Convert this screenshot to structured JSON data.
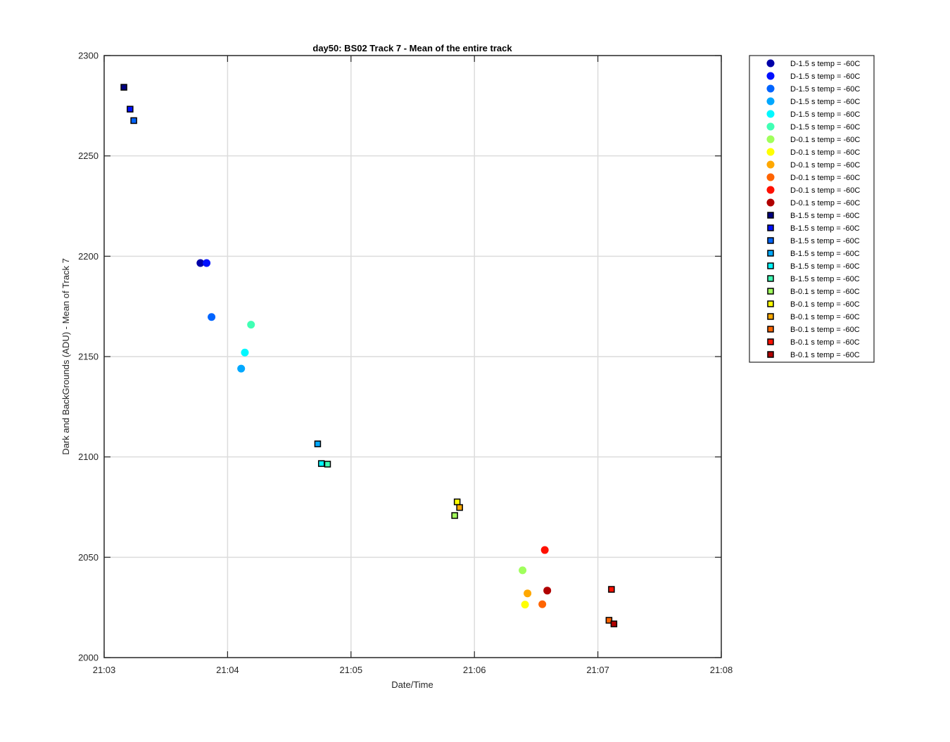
{
  "chart_data": {
    "type": "scatter",
    "title": "day50: BS02  Track 7 - Mean of the entire track",
    "xlabel": "Date/Time",
    "ylabel": "Dark and BackGrounds (ADU) - Mean of Track 7",
    "x_ticks": [
      "21:03",
      "21:04",
      "21:05",
      "21:06",
      "21:07",
      "21:08"
    ],
    "x_tick_minutes": [
      0,
      1,
      2,
      3,
      4,
      5
    ],
    "xlim_minutes": [
      0,
      5
    ],
    "y_ticks": [
      "2000",
      "2050",
      "2100",
      "2150",
      "2200",
      "2250",
      "2300"
    ],
    "ylim": [
      2000,
      2300
    ],
    "grid": true,
    "legend_position": "outside-top-right",
    "series": [
      {
        "name": "D-1.5 s temp = -60C",
        "marker": "circle",
        "color": "#0000a8",
        "points": [
          [
            0.78,
            2196.6
          ]
        ]
      },
      {
        "name": "D-1.5 s temp = -60C",
        "marker": "circle",
        "color": "#0010ff",
        "points": [
          [
            0.83,
            2196.6
          ]
        ]
      },
      {
        "name": "D-1.5 s temp = -60C",
        "marker": "circle",
        "color": "#0064ff",
        "points": [
          [
            0.87,
            2169.7
          ]
        ]
      },
      {
        "name": "D-1.5 s temp = -60C",
        "marker": "circle",
        "color": "#00a8ff",
        "points": [
          [
            1.11,
            2144.0
          ]
        ]
      },
      {
        "name": "D-1.5 s temp = -60C",
        "marker": "circle",
        "color": "#00f8ff",
        "points": [
          [
            1.14,
            2152.0
          ]
        ]
      },
      {
        "name": "D-1.5 s temp = -60C",
        "marker": "circle",
        "color": "#40ffb4",
        "points": [
          [
            1.19,
            2165.9
          ]
        ]
      },
      {
        "name": "D-0.1 s temp = -60C",
        "marker": "circle",
        "color": "#a0ff5c",
        "points": [
          [
            3.39,
            2043.5
          ]
        ]
      },
      {
        "name": "D-0.1 s temp = -60C",
        "marker": "circle",
        "color": "#ffff00",
        "points": [
          [
            3.41,
            2026.4
          ]
        ]
      },
      {
        "name": "D-0.1 s temp = -60C",
        "marker": "circle",
        "color": "#ffa800",
        "points": [
          [
            3.43,
            2032.0
          ]
        ]
      },
      {
        "name": "D-0.1 s temp = -60C",
        "marker": "circle",
        "color": "#ff6400",
        "points": [
          [
            3.55,
            2026.6
          ]
        ]
      },
      {
        "name": "D-0.1 s temp = -60C",
        "marker": "circle",
        "color": "#ff1000",
        "points": [
          [
            3.57,
            2053.6
          ]
        ]
      },
      {
        "name": "D-0.1 s temp = -60C",
        "marker": "circle",
        "color": "#b00000",
        "points": [
          [
            3.59,
            2033.4
          ]
        ]
      },
      {
        "name": "B-1.5 s temp = -60C",
        "marker": "square",
        "color": "#000080",
        "points": [
          [
            0.16,
            2284.2
          ]
        ]
      },
      {
        "name": "B-1.5 s temp = -60C",
        "marker": "square",
        "color": "#0010ff",
        "points": [
          [
            0.21,
            2273.3
          ]
        ]
      },
      {
        "name": "B-1.5 s temp = -60C",
        "marker": "square",
        "color": "#0064ff",
        "points": [
          [
            0.24,
            2267.6
          ]
        ]
      },
      {
        "name": "B-1.5 s temp = -60C",
        "marker": "square",
        "color": "#00a8ff",
        "points": [
          [
            1.73,
            2106.5
          ]
        ]
      },
      {
        "name": "B-1.5 s temp = -60C",
        "marker": "square",
        "color": "#00f8ff",
        "points": [
          [
            1.76,
            2096.7
          ]
        ]
      },
      {
        "name": "B-1.5 s temp = -60C",
        "marker": "square",
        "color": "#40ffb4",
        "points": [
          [
            1.81,
            2096.4
          ]
        ]
      },
      {
        "name": "B-0.1 s temp = -60C",
        "marker": "square",
        "color": "#a0ff5c",
        "points": [
          [
            2.84,
            2070.8
          ]
        ]
      },
      {
        "name": "B-0.1 s temp = -60C",
        "marker": "square",
        "color": "#ffff00",
        "points": [
          [
            2.86,
            2077.6
          ]
        ]
      },
      {
        "name": "B-0.1 s temp = -60C",
        "marker": "square",
        "color": "#ffa800",
        "points": [
          [
            2.88,
            2074.8
          ]
        ]
      },
      {
        "name": "B-0.1 s temp = -60C",
        "marker": "square",
        "color": "#ff6400",
        "points": [
          [
            4.09,
            2018.6
          ]
        ]
      },
      {
        "name": "B-0.1 s temp = -60C",
        "marker": "square",
        "color": "#ff1000",
        "points": [
          [
            4.11,
            2034.0
          ]
        ]
      },
      {
        "name": "B-0.1 s temp = -60C",
        "marker": "square",
        "color": "#b00000",
        "points": [
          [
            4.13,
            2016.8
          ]
        ]
      }
    ]
  }
}
